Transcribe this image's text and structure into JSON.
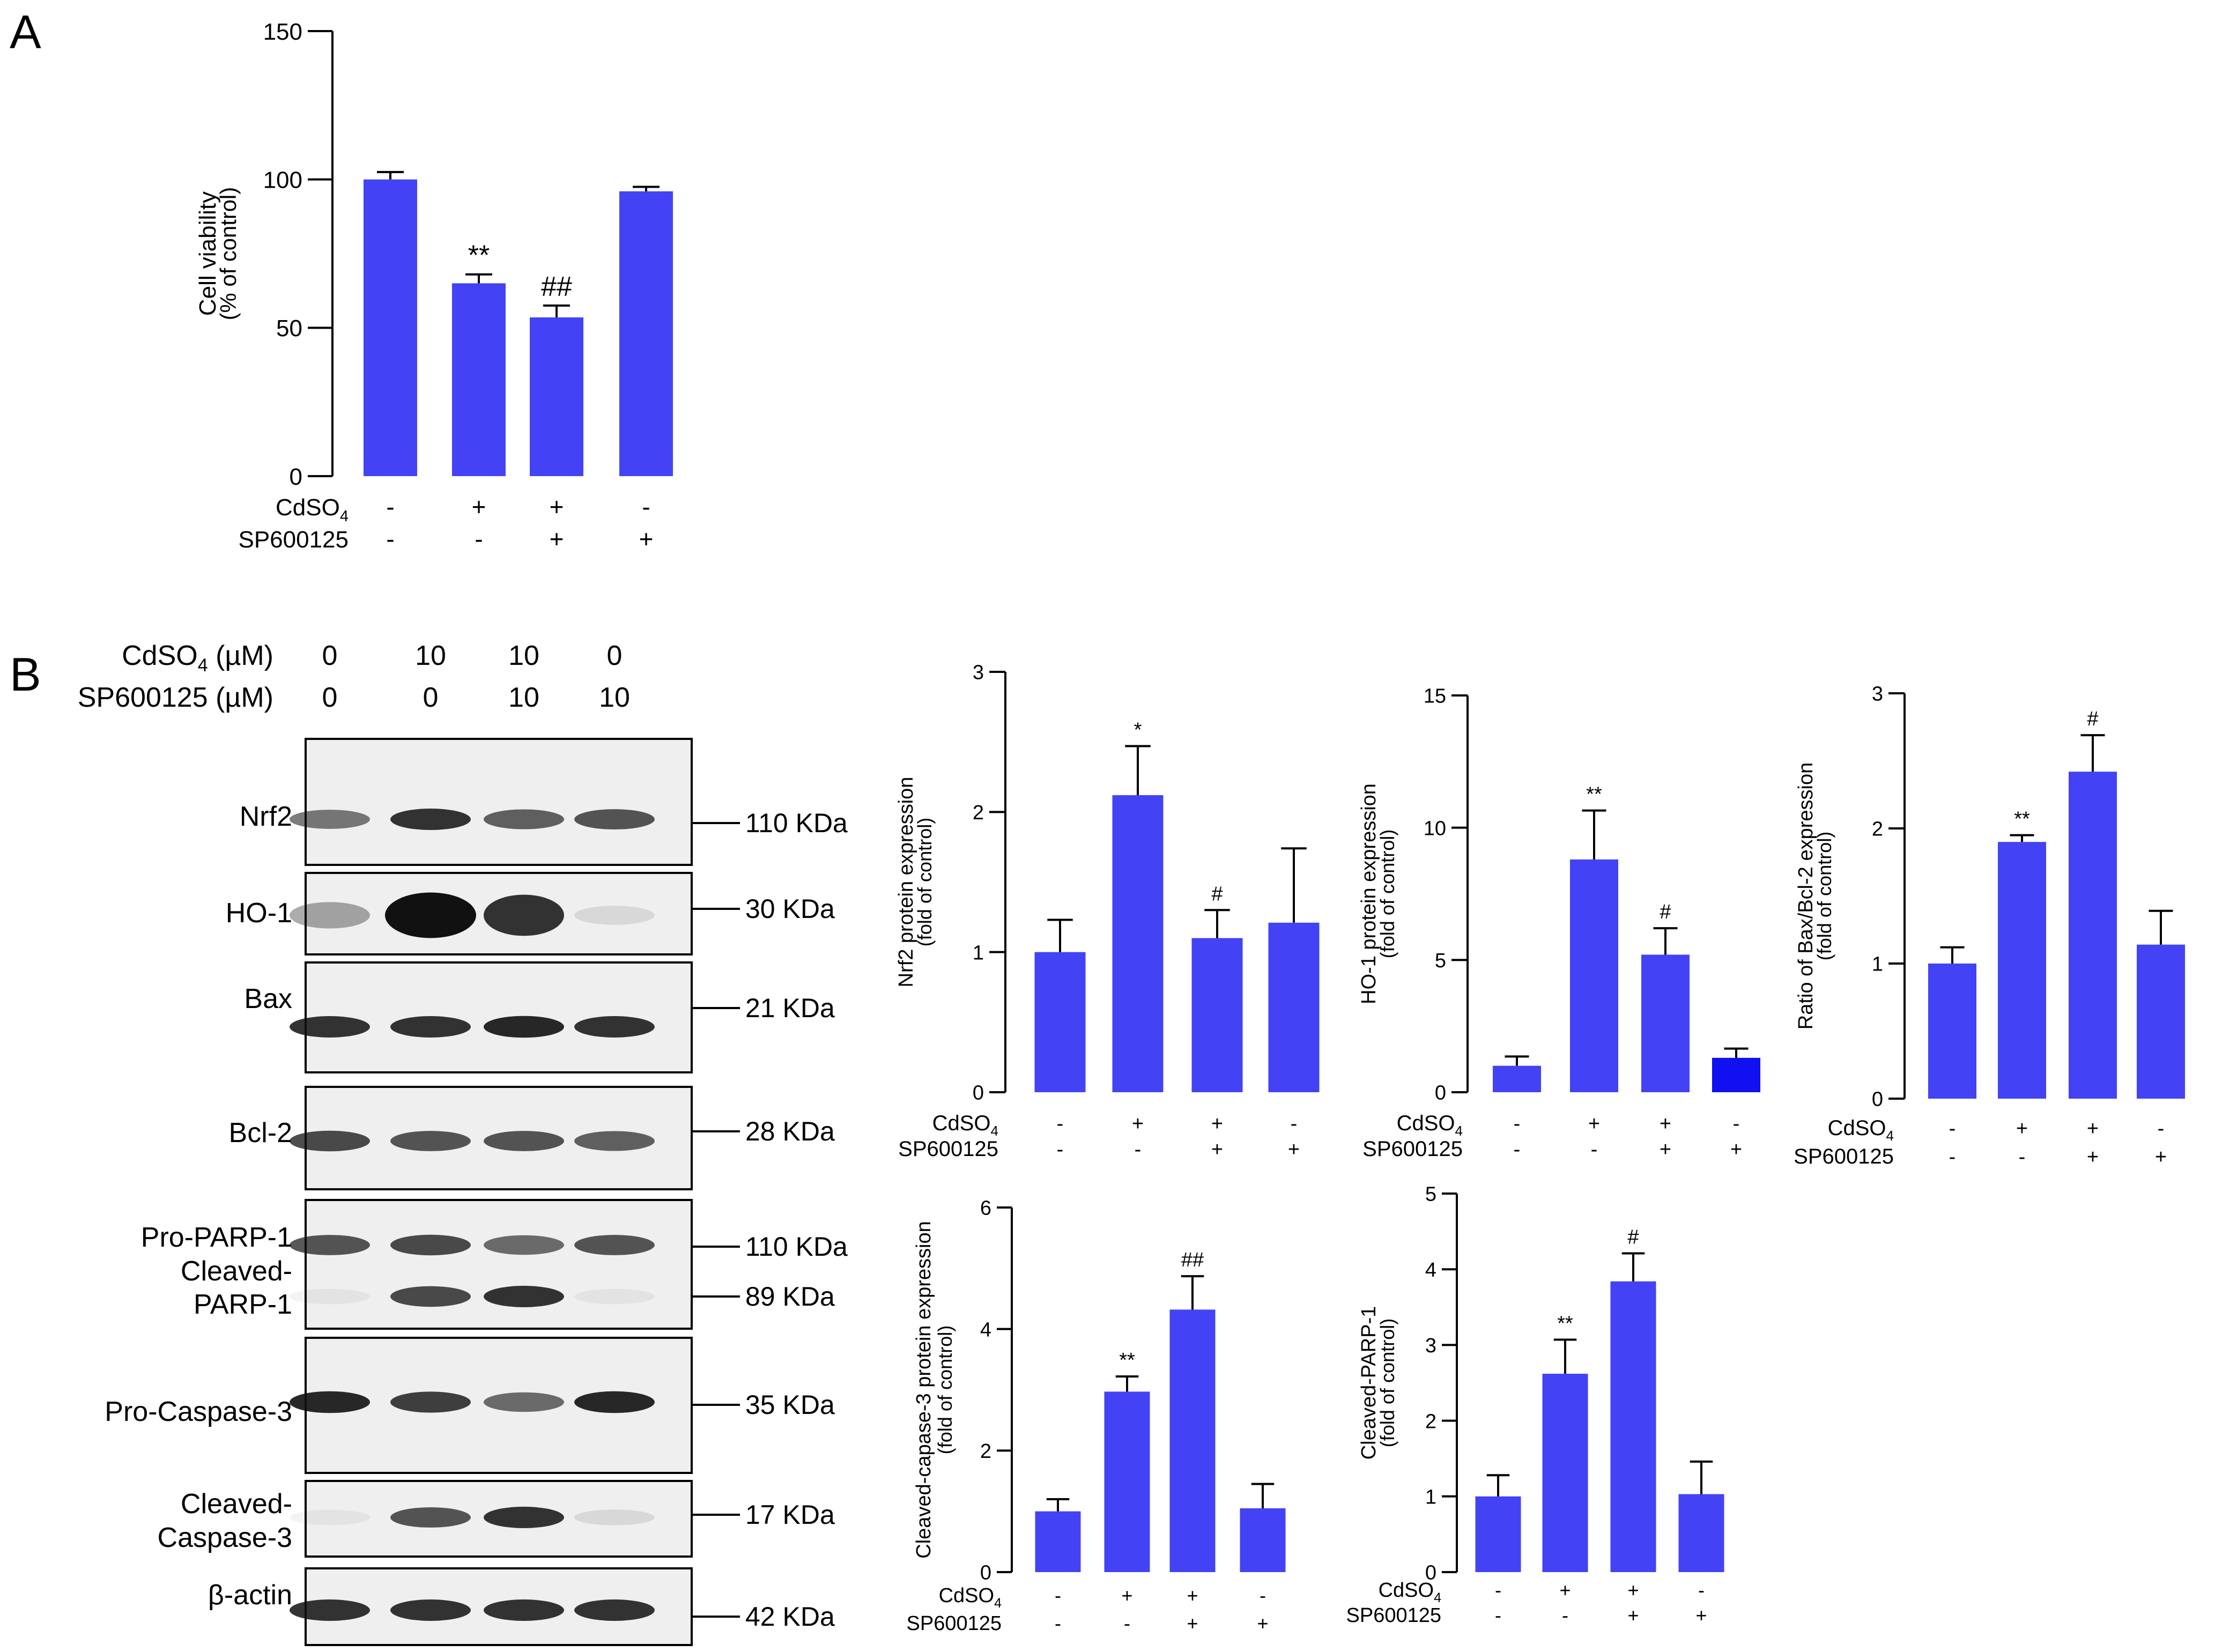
{
  "panel_labels": {
    "a": "A",
    "b": "B"
  },
  "treatment_labels": {
    "cd": "CdSO",
    "cd_sub": "4",
    "sp": "SP600125"
  },
  "sign_plus": "+",
  "sign_minus": "-",
  "groups": {
    "cd": [
      "-",
      "+",
      "+",
      "-"
    ],
    "sp": [
      "-",
      "-",
      "+",
      "+"
    ]
  },
  "western": {
    "dose_cd_label": "CdSO",
    "dose_cd_sub": "4",
    "dose_cd_unit": " (µM)",
    "dose_sp_label": "SP600125 (µM)",
    "dose_cd": [
      "0",
      "10",
      "10",
      "0"
    ],
    "dose_sp": [
      "0",
      "0",
      "10",
      "10"
    ],
    "blots": [
      {
        "name": "Nrf2",
        "kda": [
          "110 KDa"
        ]
      },
      {
        "name": "HO-1",
        "kda": [
          "30 KDa"
        ]
      },
      {
        "name": "Bax",
        "kda": [
          "21 KDa"
        ]
      },
      {
        "name": "Bcl-2",
        "kda": [
          "28 KDa"
        ]
      },
      {
        "name": "Pro-PARP-1",
        "name2": "Cleaved-",
        "name3": "PARP-1",
        "kda": [
          "110 KDa",
          "89 KDa"
        ]
      },
      {
        "name": "Pro-Caspase-3",
        "kda": [
          "35 KDa"
        ]
      },
      {
        "name": "Cleaved-",
        "name2": "Caspase-3",
        "kda": [
          "17 KDa"
        ]
      },
      {
        "name": "β-actin",
        "kda": [
          "42 KDa"
        ]
      }
    ],
    "band_intensity": [
      [
        0.55,
        0.85,
        0.65,
        0.7
      ],
      [
        0.35,
        1.0,
        0.85,
        0.1
      ],
      [
        0.85,
        0.85,
        0.9,
        0.85
      ],
      [
        0.75,
        0.7,
        0.7,
        0.65
      ],
      [
        0.7,
        0.75,
        0.6,
        0.7
      ],
      [
        0.9,
        0.8,
        0.6,
        0.9
      ],
      [
        0.05,
        0.7,
        0.85,
        0.1
      ],
      [
        0.85,
        0.85,
        0.85,
        0.85
      ]
    ]
  },
  "colors": {
    "bar": "#4343F5",
    "bar_dark": "#1010F0",
    "axis": "#000000"
  },
  "chart_data": [
    {
      "type": "bar",
      "panel": "A",
      "ylabel": "Cell viability",
      "ylabel2": "(% of control)",
      "ylim": [
        0,
        150
      ],
      "yticks": [
        0,
        50,
        100,
        150
      ],
      "values": [
        100,
        65,
        53.5,
        96
      ],
      "errors": [
        2.5,
        3,
        4,
        1.5
      ],
      "annotations": [
        "",
        "**",
        "##",
        ""
      ]
    },
    {
      "type": "bar",
      "ylabel": "Nrf2 protein expression",
      "ylabel2": "(fold of control)",
      "ylim": [
        0,
        3
      ],
      "yticks": [
        0,
        1,
        2,
        3
      ],
      "values": [
        1.0,
        2.12,
        1.1,
        1.21
      ],
      "errors": [
        0.23,
        0.35,
        0.2,
        0.53
      ],
      "annotations": [
        "",
        "*",
        "#",
        ""
      ]
    },
    {
      "type": "bar",
      "ylabel": "HO-1 protein expression",
      "ylabel2": "(fold of control)",
      "ylim": [
        0,
        15
      ],
      "yticks": [
        0,
        5,
        10,
        15
      ],
      "values": [
        1.0,
        8.8,
        5.2,
        1.3
      ],
      "errors": [
        0.35,
        1.85,
        1.0,
        0.35
      ],
      "annotations": [
        "",
        "**",
        "#",
        ""
      ]
    },
    {
      "type": "bar",
      "ylabel": "Ratio of Bax/Bcl-2 expression",
      "ylabel2": "(fold of control)",
      "ylim": [
        0,
        3
      ],
      "yticks": [
        0,
        1,
        2,
        3
      ],
      "values": [
        1.0,
        1.9,
        2.42,
        1.14
      ],
      "errors": [
        0.12,
        0.05,
        0.27,
        0.25
      ],
      "annotations": [
        "",
        "**",
        "#",
        ""
      ]
    },
    {
      "type": "bar",
      "ylabel": "Cleaved-capase-3 protein expression",
      "ylabel2": "(fold of control)",
      "ylim": [
        0,
        6
      ],
      "yticks": [
        0,
        2,
        4,
        6
      ],
      "values": [
        1.0,
        2.97,
        4.32,
        1.05
      ],
      "errors": [
        0.2,
        0.25,
        0.55,
        0.4
      ],
      "annotations": [
        "",
        "**",
        "##",
        ""
      ]
    },
    {
      "type": "bar",
      "ylabel": "Cleaved-PARP-1",
      "ylabel2": "(fold of control)",
      "ylim": [
        0,
        5
      ],
      "yticks": [
        0,
        1,
        2,
        3,
        4,
        5
      ],
      "values": [
        1.0,
        2.62,
        3.84,
        1.03
      ],
      "errors": [
        0.28,
        0.45,
        0.37,
        0.43
      ],
      "annotations": [
        "",
        "**",
        "#",
        ""
      ]
    }
  ]
}
